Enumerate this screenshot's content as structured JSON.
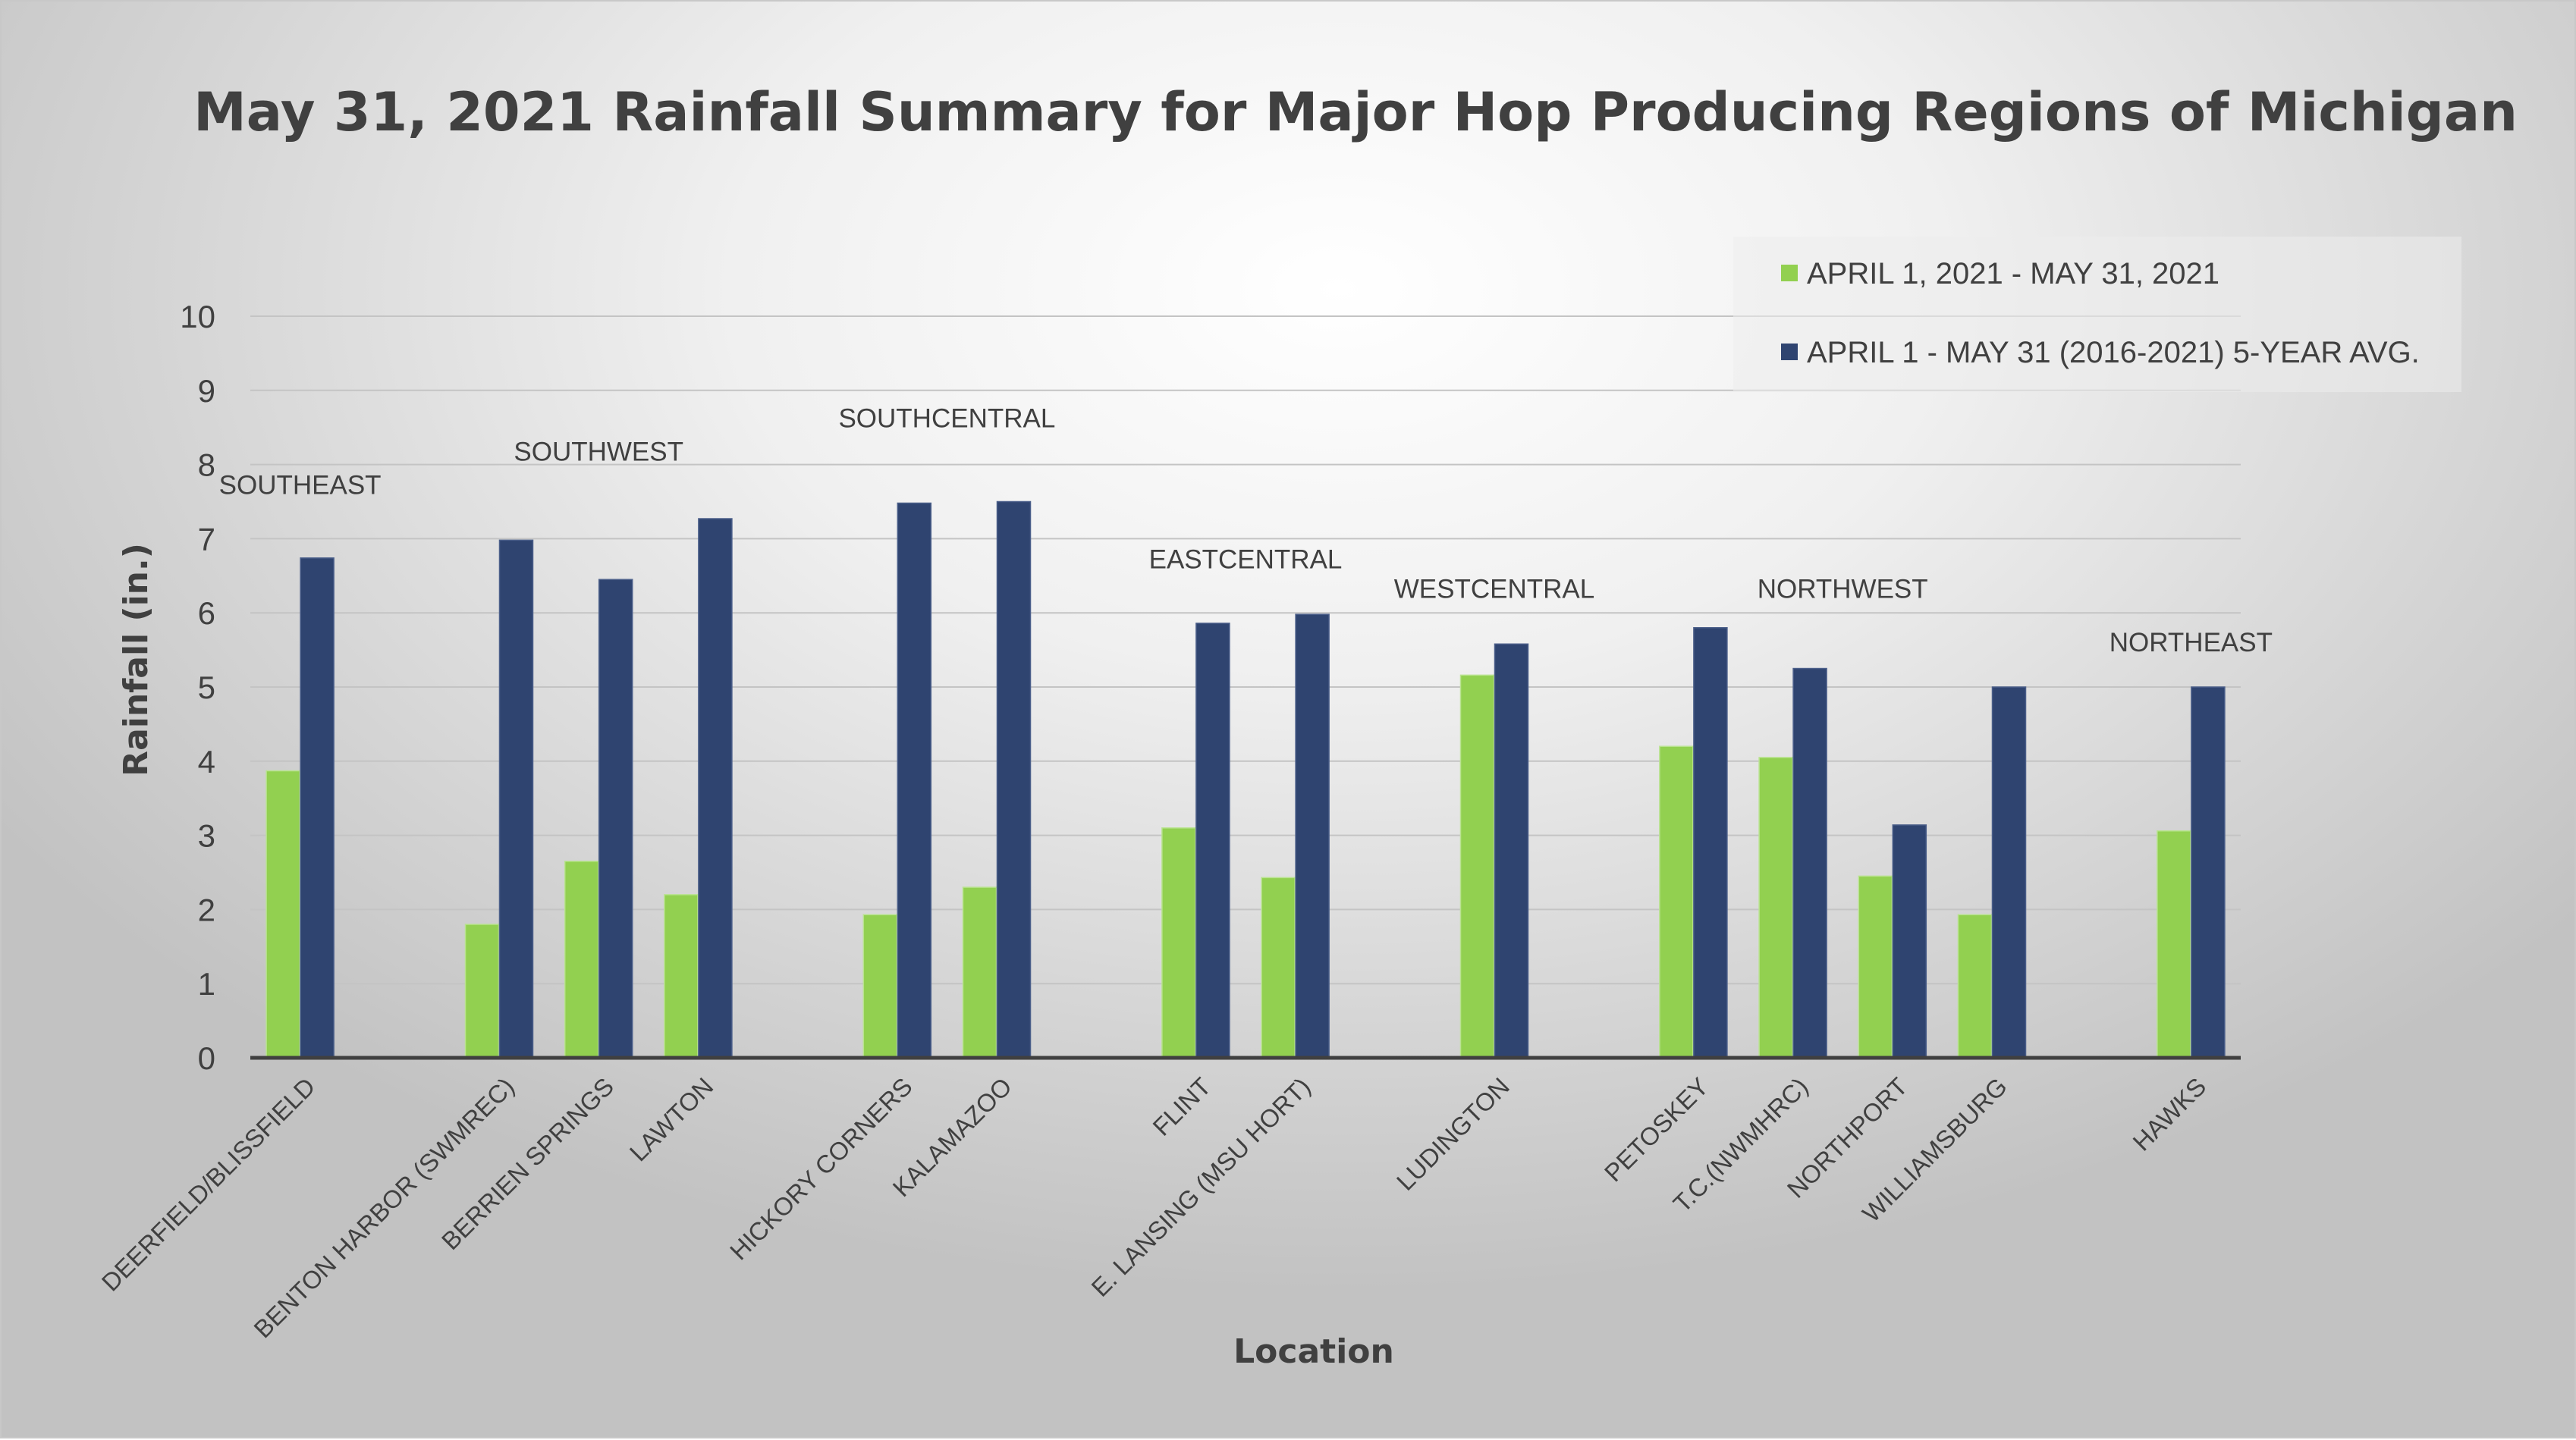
{
  "chart_data": {
    "type": "bar",
    "title": "May 31, 2021 Rainfall Summary for Major Hop Producing Regions of Michigan",
    "xlabel": "Location",
    "ylabel": "Rainfall (in.)",
    "ylim": [
      0,
      10
    ],
    "yticks": [
      "0",
      "1",
      "2",
      "3",
      "4",
      "5",
      "6",
      "7",
      "8",
      "9",
      "10"
    ],
    "grid": true,
    "legend_position": "top-right",
    "categories": [
      "DEERFIELD/BLISSFIELD",
      "",
      "BENTON HARBOR (SWMREC)",
      "BERRIEN SPRINGS",
      "LAWTON",
      "",
      "HICKORY CORNERS",
      "KALAMAZOO",
      "",
      "FLINT",
      "E. LANSING (MSU HORT)",
      "",
      "LUDINGTON",
      "",
      "PETOSKEY",
      "T.C.(NWMHRC)",
      "NORTHPORT",
      "WILLIAMSBURG",
      "",
      "HAWKS"
    ],
    "series": [
      {
        "name": "APRIL 1, 2021 - MAY 31, 2021",
        "color": "#92d050",
        "values": [
          3.87,
          null,
          1.8,
          2.65,
          2.2,
          null,
          1.93,
          2.3,
          null,
          3.1,
          2.43,
          null,
          5.16,
          null,
          4.2,
          4.05,
          2.45,
          1.93,
          null,
          3.06
        ]
      },
      {
        "name": "APRIL 1 - MAY 31 (2016-2021) 5-YEAR AVG.",
        "color": "#2f4470",
        "values": [
          6.74,
          null,
          6.98,
          6.45,
          7.27,
          null,
          7.48,
          7.5,
          null,
          5.86,
          5.98,
          null,
          5.58,
          null,
          5.8,
          5.25,
          3.14,
          5.0,
          null,
          5.0
        ]
      }
    ],
    "annotations": [
      {
        "text": "SOUTHEAST",
        "category_index": 0,
        "value": 7.6
      },
      {
        "text": "SOUTHWEST",
        "category_index": 3,
        "value": 8.05
      },
      {
        "text": "SOUTHCENTRAL",
        "category_index": 6.5,
        "value": 8.5
      },
      {
        "text": "EASTCENTRAL",
        "category_index": 9.5,
        "value": 6.6
      },
      {
        "text": "WESTCENTRAL",
        "category_index": 12,
        "value": 6.2
      },
      {
        "text": "NORTHWEST",
        "category_index": 15.5,
        "value": 6.2
      },
      {
        "text": "NORTHEAST",
        "category_index": 19,
        "value": 5.48
      }
    ]
  }
}
